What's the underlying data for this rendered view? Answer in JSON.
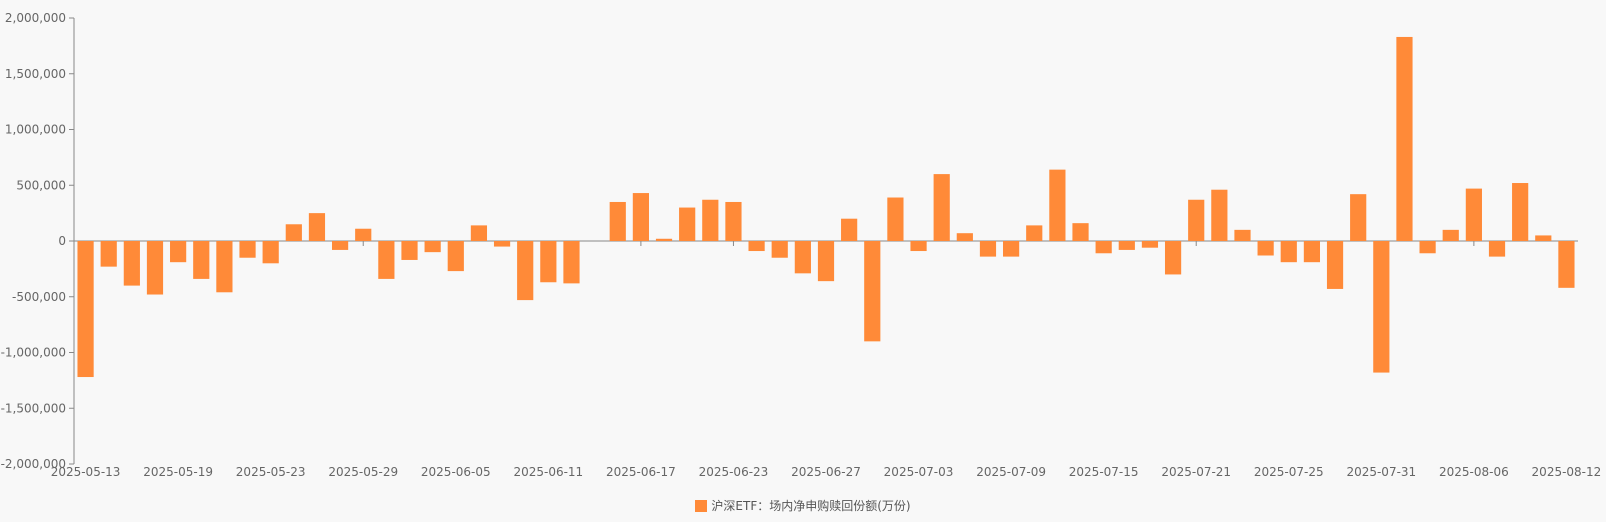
{
  "chart_data": {
    "type": "bar",
    "title": "",
    "xlabel": "",
    "ylabel": "",
    "ylim": [
      -2000000,
      2000000
    ],
    "y_ticks": [
      2000000,
      1500000,
      1000000,
      500000,
      0,
      -500000,
      -1000000,
      -1500000,
      -2000000
    ],
    "y_tick_labels": [
      "2,000,000",
      "1,500,000",
      "1,000,000",
      "500,000",
      "0",
      "-500,000",
      "-1,000,000",
      "-1,500,000",
      "-2,000,000"
    ],
    "x_tick_labels": [
      "2025-05-13",
      "2025-05-19",
      "2025-05-23",
      "2025-05-29",
      "2025-06-05",
      "2025-06-11",
      "2025-06-17",
      "2025-06-23",
      "2025-06-27",
      "2025-07-03",
      "2025-07-09",
      "2025-07-15",
      "2025-07-21",
      "2025-07-25",
      "2025-07-31",
      "2025-08-06",
      "2025-08-12"
    ],
    "x_tick_every": 4,
    "grid": false,
    "legend_position": "bottom-center",
    "series": [
      {
        "name": "沪深ETF：场内净申购赎回份额(万份)",
        "color": "#ff8a38",
        "values": [
          -1220000,
          -230000,
          -400000,
          -480000,
          -190000,
          -340000,
          -460000,
          -150000,
          -200000,
          150000,
          250000,
          -80000,
          110000,
          -340000,
          -170000,
          -100000,
          -270000,
          140000,
          -50000,
          -530000,
          -370000,
          -380000,
          0,
          350000,
          430000,
          20000,
          300000,
          370000,
          350000,
          -90000,
          -150000,
          -290000,
          -360000,
          200000,
          -900000,
          390000,
          -90000,
          600000,
          70000,
          -140000,
          -140000,
          140000,
          640000,
          160000,
          -110000,
          -80000,
          -60000,
          -300000,
          370000,
          460000,
          100000,
          -130000,
          -190000,
          -190000,
          -430000,
          420000,
          -1180000,
          1830000,
          -110000,
          100000,
          470000,
          -140000,
          520000,
          50000,
          -420000
        ]
      }
    ]
  }
}
